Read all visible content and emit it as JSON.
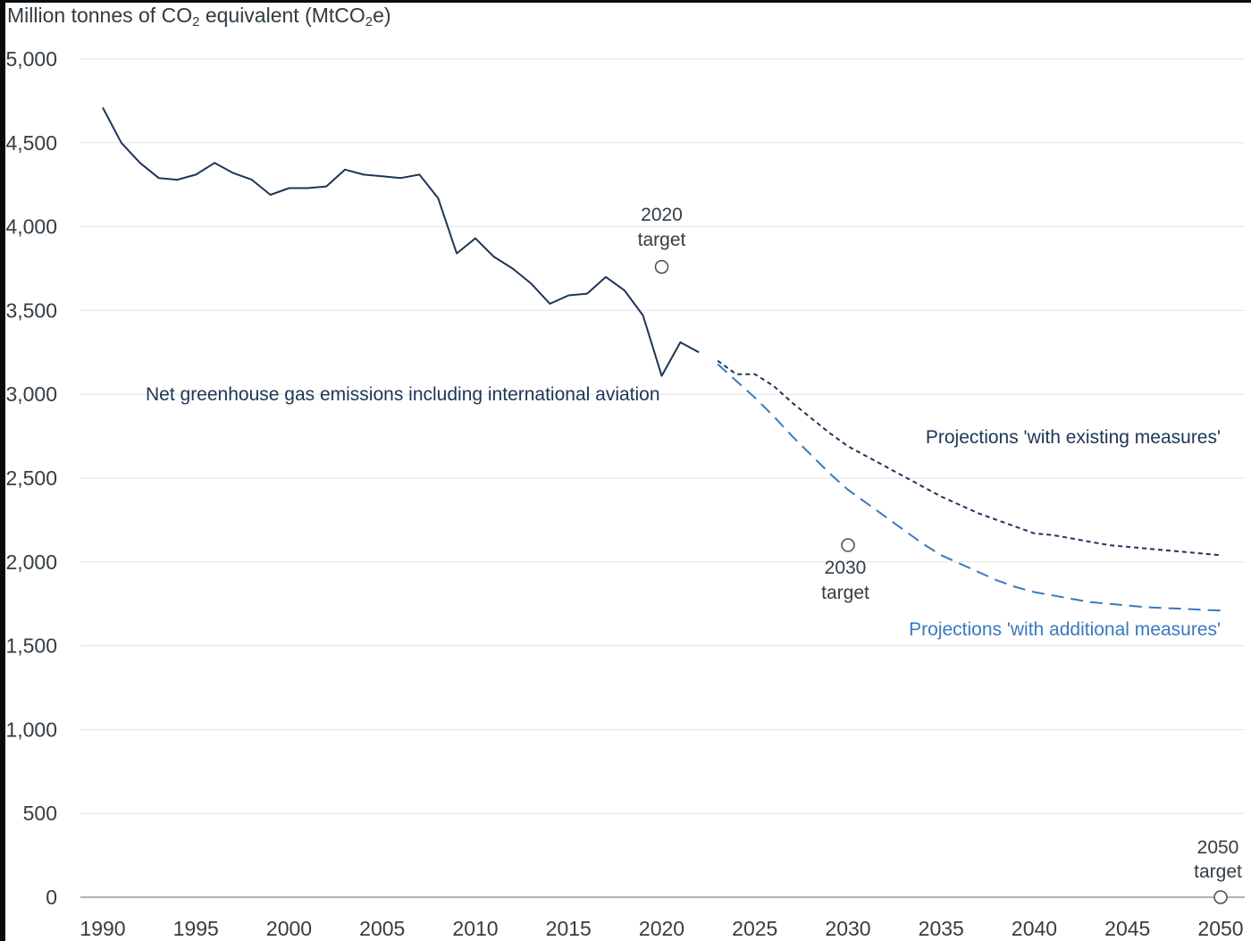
{
  "chart_data": {
    "type": "line",
    "ylabel": {
      "pre": "Million tonnes of CO",
      "sub1": "2",
      "mid": " equivalent (MtCO",
      "sub2": "2",
      "post": "e)"
    },
    "ylim": [
      0,
      5000
    ],
    "xlim": [
      1990,
      2050
    ],
    "yticks": [
      "0",
      "500",
      "1,000",
      "1,500",
      "2,000",
      "2,500",
      "3,000",
      "3,500",
      "4,000",
      "4,500",
      "5,000"
    ],
    "ytick_values": [
      0,
      500,
      1000,
      1500,
      2000,
      2500,
      3000,
      3500,
      4000,
      4500,
      5000
    ],
    "xticks": [
      "1990",
      "1995",
      "2000",
      "2005",
      "2010",
      "2015",
      "2020",
      "2025",
      "2030",
      "2035",
      "2040",
      "2045",
      "2050"
    ],
    "xtick_values": [
      1990,
      1995,
      2000,
      2005,
      2010,
      2015,
      2020,
      2025,
      2030,
      2035,
      2040,
      2045,
      2050
    ],
    "grid": "horizontal",
    "colors": {
      "historical": "#1d3557",
      "existing": "#1d3557",
      "additional": "#3a79bd",
      "grid": "#e3e3e3",
      "axis": "#9a9a9a",
      "text": "#333d45"
    },
    "series": [
      {
        "name": "Net greenhouse gas emissions including international aviation",
        "style": "solid",
        "x": [
          1990,
          1991,
          1992,
          1993,
          1994,
          1995,
          1996,
          1997,
          1998,
          1999,
          2000,
          2001,
          2002,
          2003,
          2004,
          2005,
          2006,
          2007,
          2008,
          2009,
          2010,
          2011,
          2012,
          2013,
          2014,
          2015,
          2016,
          2017,
          2018,
          2019,
          2020,
          2021,
          2022
        ],
        "y": [
          4710,
          4500,
          4380,
          4290,
          4280,
          4310,
          4380,
          4320,
          4280,
          4190,
          4230,
          4230,
          4240,
          4340,
          4310,
          4300,
          4290,
          4310,
          4170,
          3840,
          3930,
          3820,
          3750,
          3660,
          3540,
          3590,
          3600,
          3700,
          3620,
          3470,
          3110,
          3310,
          3250
        ]
      },
      {
        "name": "Projections 'with existing measures'",
        "style": "dotted",
        "x": [
          2023,
          2024,
          2025,
          2026,
          2027,
          2028,
          2029,
          2030,
          2031,
          2032,
          2033,
          2034,
          2035,
          2036,
          2037,
          2038,
          2039,
          2040,
          2041,
          2042,
          2043,
          2044,
          2045,
          2046,
          2047,
          2048,
          2049,
          2050
        ],
        "y": [
          3200,
          3120,
          3120,
          3050,
          2950,
          2860,
          2770,
          2690,
          2630,
          2570,
          2510,
          2450,
          2390,
          2340,
          2290,
          2250,
          2210,
          2170,
          2160,
          2140,
          2120,
          2100,
          2090,
          2080,
          2070,
          2060,
          2050,
          2040
        ]
      },
      {
        "name": "Projections 'with additional measures'",
        "style": "dashed",
        "x": [
          2023,
          2024,
          2025,
          2026,
          2027,
          2028,
          2029,
          2030,
          2031,
          2032,
          2033,
          2034,
          2035,
          2036,
          2037,
          2038,
          2039,
          2040,
          2041,
          2042,
          2043,
          2044,
          2045,
          2046,
          2047,
          2048,
          2049,
          2050
        ],
        "y": [
          3180,
          3080,
          2980,
          2870,
          2750,
          2640,
          2530,
          2430,
          2350,
          2270,
          2190,
          2110,
          2040,
          1990,
          1940,
          1890,
          1850,
          1820,
          1800,
          1780,
          1760,
          1750,
          1740,
          1730,
          1725,
          1720,
          1715,
          1710
        ]
      }
    ],
    "targets": [
      {
        "label_line1": "2020",
        "label_line2": "target",
        "x": 2020,
        "y": 3760
      },
      {
        "label_line1": "2030",
        "label_line2": "target",
        "x": 2030,
        "y": 2100
      },
      {
        "label_line1": "2050",
        "label_line2": "target",
        "x": 2050,
        "y": 0
      }
    ]
  }
}
